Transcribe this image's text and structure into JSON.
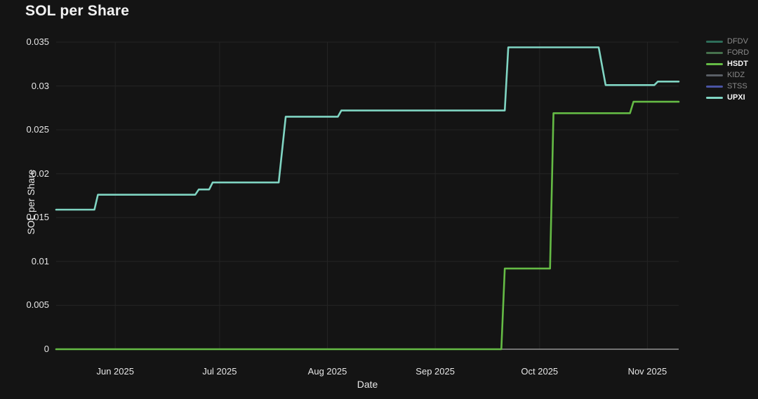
{
  "header": {
    "title": "SOL per Share"
  },
  "chart_data": {
    "type": "line",
    "title": "SOL per Share",
    "xlabel": "Date",
    "ylabel": "SOL per Share",
    "x_unit": "days_since_2025-05-15",
    "xlim": [
      0,
      179
    ],
    "ylim": [
      0,
      0.035
    ],
    "y_ticks": [
      0,
      0.005,
      0.01,
      0.015,
      0.02,
      0.025,
      0.03,
      0.035
    ],
    "y_tick_labels": [
      "0",
      "0.005",
      "0.01",
      "0.015",
      "0.02",
      "0.025",
      "0.03",
      "0.035"
    ],
    "x_ticks": [
      17,
      47,
      78,
      109,
      139,
      170
    ],
    "x_tick_labels": [
      "Jun 2025",
      "Jul 2025",
      "Aug 2025",
      "Sep 2025",
      "Oct 2025",
      "Nov 2025"
    ],
    "grid": true,
    "grid_color": "#242424",
    "axis_line_color": "#949494",
    "legend_position": "top-right",
    "series": [
      {
        "name": "DFDV",
        "color": "#2e6e5a",
        "dimmed": true,
        "points": []
      },
      {
        "name": "FORD",
        "color": "#46714d",
        "dimmed": true,
        "points": []
      },
      {
        "name": "HSDT",
        "color": "#65bb45",
        "dimmed": false,
        "points": [
          [
            0,
            0
          ],
          [
            128,
            0
          ],
          [
            129,
            0.0092
          ],
          [
            142,
            0.0092
          ],
          [
            143,
            0.0269
          ],
          [
            165,
            0.0269
          ],
          [
            166,
            0.0282
          ],
          [
            179,
            0.0282
          ]
        ]
      },
      {
        "name": "KIDZ",
        "color": "#5a5f66",
        "dimmed": true,
        "points": []
      },
      {
        "name": "STSS",
        "color": "#4a54a4",
        "dimmed": true,
        "points": []
      },
      {
        "name": "UPXI",
        "color": "#80d5c3",
        "dimmed": false,
        "points": [
          [
            0,
            0.0159
          ],
          [
            11,
            0.0159
          ],
          [
            12,
            0.0176
          ],
          [
            40,
            0.0176
          ],
          [
            41,
            0.0182
          ],
          [
            44,
            0.0182
          ],
          [
            45,
            0.019
          ],
          [
            64,
            0.019
          ],
          [
            66,
            0.0265
          ],
          [
            81,
            0.0265
          ],
          [
            82,
            0.0272
          ],
          [
            129,
            0.0272
          ],
          [
            130,
            0.0344
          ],
          [
            156,
            0.0344
          ],
          [
            158,
            0.0301
          ],
          [
            172,
            0.0301
          ],
          [
            173,
            0.0305
          ],
          [
            179,
            0.0305
          ]
        ]
      }
    ]
  }
}
